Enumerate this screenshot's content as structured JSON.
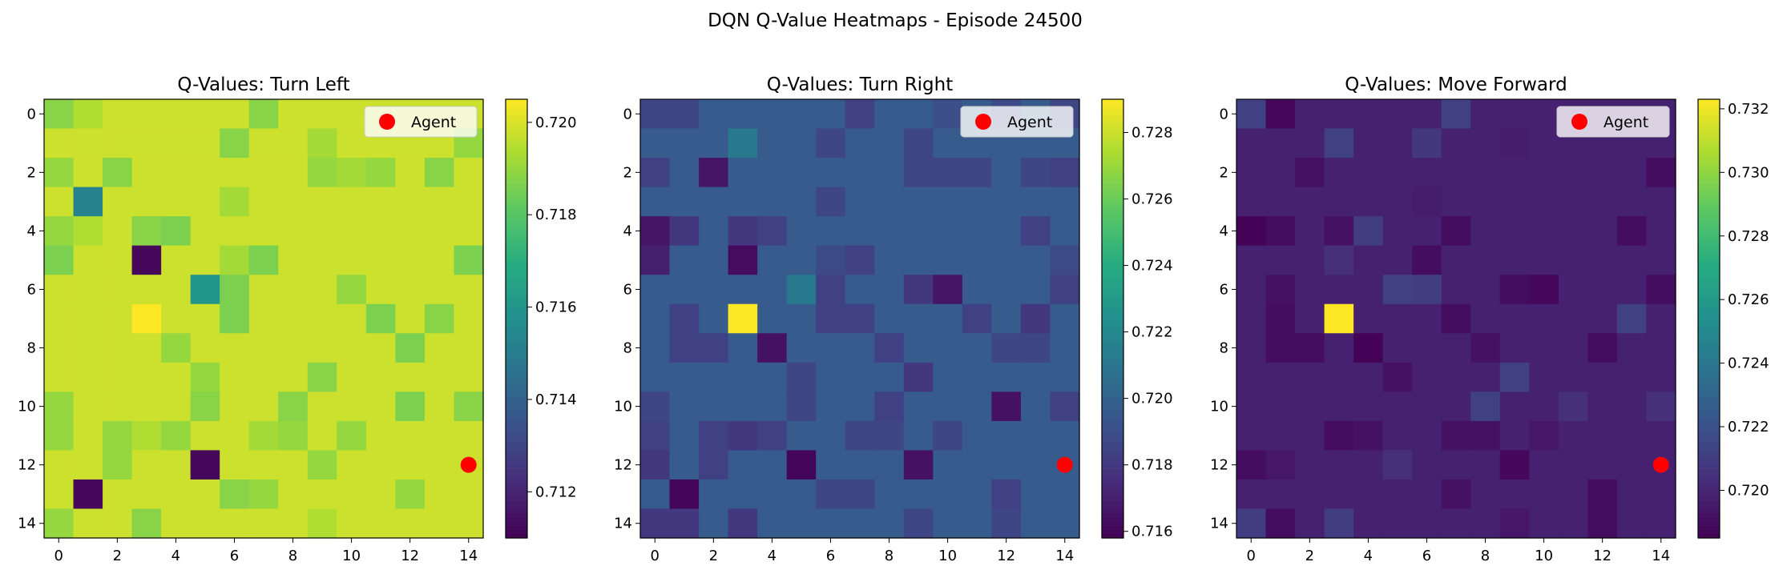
{
  "figure": {
    "title": "DQN Q-Value Heatmaps - Episode 24500"
  },
  "chart_data": [
    {
      "type": "heatmap",
      "title": "Q-Values: Turn Left",
      "vmin": 0.711,
      "vmax": 0.7205,
      "colorbar_ticks": [
        "0.712",
        "0.714",
        "0.716",
        "0.718",
        "0.720"
      ],
      "colorbar_values": [
        0.712,
        0.714,
        0.716,
        0.718,
        0.72
      ],
      "base": 0.7198,
      "cells": [
        [
          3,
          1,
          0.7152
        ],
        [
          5,
          3,
          0.7112
        ],
        [
          6,
          5,
          0.716
        ],
        [
          7,
          3,
          0.7205
        ],
        [
          12,
          5,
          0.7112
        ],
        [
          13,
          1,
          0.7112
        ],
        [
          0,
          0,
          0.7188
        ],
        [
          0,
          1,
          0.7194
        ],
        [
          0,
          7,
          0.7188
        ],
        [
          1,
          6,
          0.7188
        ],
        [
          1,
          9,
          0.7192
        ],
        [
          1,
          14,
          0.719
        ],
        [
          2,
          0,
          0.719
        ],
        [
          2,
          2,
          0.7188
        ],
        [
          2,
          9,
          0.719
        ],
        [
          2,
          10,
          0.7192
        ],
        [
          2,
          11,
          0.719
        ],
        [
          2,
          13,
          0.7188
        ],
        [
          3,
          6,
          0.7192
        ],
        [
          4,
          0,
          0.719
        ],
        [
          4,
          1,
          0.7194
        ],
        [
          4,
          3,
          0.7188
        ],
        [
          4,
          4,
          0.7186
        ],
        [
          5,
          0,
          0.7186
        ],
        [
          5,
          6,
          0.7192
        ],
        [
          5,
          7,
          0.7186
        ],
        [
          5,
          14,
          0.7186
        ],
        [
          6,
          6,
          0.7186
        ],
        [
          6,
          10,
          0.719
        ],
        [
          7,
          6,
          0.7186
        ],
        [
          7,
          11,
          0.7186
        ],
        [
          7,
          13,
          0.7188
        ],
        [
          8,
          4,
          0.719
        ],
        [
          8,
          12,
          0.7186
        ],
        [
          9,
          5,
          0.719
        ],
        [
          9,
          9,
          0.7188
        ],
        [
          10,
          0,
          0.719
        ],
        [
          10,
          5,
          0.7188
        ],
        [
          10,
          8,
          0.7188
        ],
        [
          10,
          12,
          0.7186
        ],
        [
          10,
          14,
          0.7188
        ],
        [
          11,
          0,
          0.719
        ],
        [
          11,
          2,
          0.719
        ],
        [
          11,
          3,
          0.7194
        ],
        [
          11,
          4,
          0.719
        ],
        [
          11,
          7,
          0.7192
        ],
        [
          11,
          8,
          0.719
        ],
        [
          11,
          10,
          0.719
        ],
        [
          12,
          2,
          0.719
        ],
        [
          12,
          9,
          0.719
        ],
        [
          13,
          6,
          0.7188
        ],
        [
          13,
          7,
          0.719
        ],
        [
          13,
          12,
          0.719
        ],
        [
          14,
          0,
          0.719
        ],
        [
          14,
          3,
          0.7188
        ],
        [
          14,
          9,
          0.7194
        ]
      ],
      "xticks": [
        "0",
        "2",
        "4",
        "6",
        "8",
        "10",
        "12",
        "14"
      ],
      "yticks": [
        "0",
        "2",
        "4",
        "6",
        "8",
        "10",
        "12",
        "14"
      ],
      "agent": {
        "x": 14,
        "y": 12,
        "color": "#ff0000"
      },
      "legend": {
        "label": "Agent",
        "position": "top-right"
      }
    },
    {
      "type": "heatmap",
      "title": "Q-Values: Turn Right",
      "vmin": 0.7158,
      "vmax": 0.729,
      "colorbar_ticks": [
        "0.716",
        "0.718",
        "0.720",
        "0.722",
        "0.724",
        "0.726",
        "0.728"
      ],
      "colorbar_values": [
        0.716,
        0.718,
        0.72,
        0.722,
        0.724,
        0.726,
        0.728
      ],
      "base": 0.7196,
      "cells": [
        [
          1,
          3,
          0.7212
        ],
        [
          6,
          5,
          0.7212
        ],
        [
          7,
          3,
          0.729
        ],
        [
          0,
          0,
          0.7186
        ],
        [
          0,
          1,
          0.7186
        ],
        [
          0,
          7,
          0.7184
        ],
        [
          0,
          10,
          0.719
        ],
        [
          0,
          12,
          0.7188
        ],
        [
          0,
          14,
          0.7186
        ],
        [
          1,
          6,
          0.7186
        ],
        [
          1,
          9,
          0.7186
        ],
        [
          2,
          0,
          0.7184
        ],
        [
          2,
          2,
          0.7166
        ],
        [
          2,
          9,
          0.7186
        ],
        [
          2,
          10,
          0.7186
        ],
        [
          2,
          11,
          0.7186
        ],
        [
          2,
          13,
          0.7186
        ],
        [
          2,
          14,
          0.7184
        ],
        [
          3,
          6,
          0.7186
        ],
        [
          4,
          0,
          0.7166
        ],
        [
          4,
          1,
          0.718
        ],
        [
          4,
          3,
          0.718
        ],
        [
          4,
          4,
          0.7184
        ],
        [
          4,
          13,
          0.7184
        ],
        [
          5,
          0,
          0.717
        ],
        [
          5,
          3,
          0.7162
        ],
        [
          5,
          6,
          0.7188
        ],
        [
          5,
          7,
          0.7184
        ],
        [
          5,
          14,
          0.7188
        ],
        [
          6,
          6,
          0.7184
        ],
        [
          6,
          9,
          0.718
        ],
        [
          6,
          10,
          0.7166
        ],
        [
          6,
          14,
          0.7184
        ],
        [
          7,
          1,
          0.7184
        ],
        [
          7,
          6,
          0.7184
        ],
        [
          7,
          7,
          0.7184
        ],
        [
          7,
          11,
          0.7184
        ],
        [
          7,
          13,
          0.718
        ],
        [
          8,
          1,
          0.7184
        ],
        [
          8,
          2,
          0.7184
        ],
        [
          8,
          4,
          0.7164
        ],
        [
          8,
          8,
          0.7184
        ],
        [
          8,
          12,
          0.7186
        ],
        [
          8,
          13,
          0.7186
        ],
        [
          9,
          5,
          0.7186
        ],
        [
          9,
          9,
          0.718
        ],
        [
          10,
          0,
          0.7186
        ],
        [
          10,
          5,
          0.7186
        ],
        [
          10,
          8,
          0.7184
        ],
        [
          10,
          12,
          0.7164
        ],
        [
          10,
          14,
          0.7184
        ],
        [
          11,
          0,
          0.7184
        ],
        [
          11,
          2,
          0.7184
        ],
        [
          11,
          3,
          0.718
        ],
        [
          11,
          4,
          0.7184
        ],
        [
          11,
          7,
          0.7186
        ],
        [
          11,
          8,
          0.7186
        ],
        [
          11,
          10,
          0.7186
        ],
        [
          12,
          0,
          0.718
        ],
        [
          12,
          2,
          0.7184
        ],
        [
          12,
          5,
          0.716
        ],
        [
          12,
          9,
          0.7164
        ],
        [
          13,
          1,
          0.716
        ],
        [
          13,
          6,
          0.7186
        ],
        [
          13,
          7,
          0.7186
        ],
        [
          13,
          12,
          0.7184
        ],
        [
          14,
          0,
          0.718
        ],
        [
          14,
          1,
          0.718
        ],
        [
          14,
          3,
          0.718
        ],
        [
          14,
          9,
          0.7186
        ],
        [
          14,
          12,
          0.7186
        ]
      ],
      "xticks": [
        "0",
        "2",
        "4",
        "6",
        "8",
        "10",
        "12",
        "14"
      ],
      "yticks": [
        "0",
        "2",
        "4",
        "6",
        "8",
        "10",
        "12",
        "14"
      ],
      "agent": {
        "x": 14,
        "y": 12,
        "color": "#ff0000"
      },
      "legend": {
        "label": "Agent",
        "position": "top-right"
      }
    },
    {
      "type": "heatmap",
      "title": "Q-Values: Move Forward",
      "vmin": 0.7185,
      "vmax": 0.7323,
      "colorbar_ticks": [
        "0.720",
        "0.722",
        "0.724",
        "0.726",
        "0.728",
        "0.730",
        "0.732"
      ],
      "colorbar_values": [
        0.72,
        0.722,
        0.724,
        0.726,
        0.728,
        0.73,
        0.732
      ],
      "base": 0.7198,
      "cells": [
        [
          7,
          3,
          0.7323
        ],
        [
          0,
          0,
          0.7212
        ],
        [
          0,
          1,
          0.7188
        ],
        [
          0,
          7,
          0.7212
        ],
        [
          1,
          3,
          0.7212
        ],
        [
          1,
          6,
          0.7208
        ],
        [
          1,
          9,
          0.7196
        ],
        [
          2,
          2,
          0.7192
        ],
        [
          2,
          14,
          0.719
        ],
        [
          3,
          6,
          0.7196
        ],
        [
          4,
          0,
          0.7186
        ],
        [
          4,
          1,
          0.719
        ],
        [
          4,
          3,
          0.7192
        ],
        [
          4,
          4,
          0.721
        ],
        [
          4,
          7,
          0.719
        ],
        [
          4,
          13,
          0.719
        ],
        [
          5,
          3,
          0.7204
        ],
        [
          5,
          6,
          0.719
        ],
        [
          6,
          1,
          0.7192
        ],
        [
          6,
          5,
          0.7212
        ],
        [
          6,
          6,
          0.721
        ],
        [
          6,
          9,
          0.719
        ],
        [
          6,
          10,
          0.7188
        ],
        [
          6,
          14,
          0.719
        ],
        [
          7,
          1,
          0.719
        ],
        [
          7,
          7,
          0.719
        ],
        [
          7,
          13,
          0.7212
        ],
        [
          8,
          1,
          0.719
        ],
        [
          8,
          2,
          0.719
        ],
        [
          8,
          4,
          0.7186
        ],
        [
          8,
          8,
          0.7192
        ],
        [
          8,
          12,
          0.719
        ],
        [
          9,
          5,
          0.7192
        ],
        [
          9,
          9,
          0.7212
        ],
        [
          10,
          8,
          0.7212
        ],
        [
          10,
          11,
          0.7204
        ],
        [
          10,
          14,
          0.7204
        ],
        [
          11,
          3,
          0.719
        ],
        [
          11,
          4,
          0.7192
        ],
        [
          11,
          7,
          0.7192
        ],
        [
          11,
          8,
          0.7192
        ],
        [
          11,
          10,
          0.7194
        ],
        [
          12,
          0,
          0.719
        ],
        [
          12,
          1,
          0.7194
        ],
        [
          12,
          5,
          0.7204
        ],
        [
          12,
          9,
          0.7188
        ],
        [
          13,
          7,
          0.7192
        ],
        [
          13,
          12,
          0.719
        ],
        [
          14,
          0,
          0.721
        ],
        [
          14,
          1,
          0.719
        ],
        [
          14,
          3,
          0.721
        ],
        [
          14,
          9,
          0.7194
        ],
        [
          14,
          12,
          0.719
        ]
      ],
      "xticks": [
        "0",
        "2",
        "4",
        "6",
        "8",
        "10",
        "12",
        "14"
      ],
      "yticks": [
        "0",
        "2",
        "4",
        "6",
        "8",
        "10",
        "12",
        "14"
      ],
      "agent": {
        "x": 14,
        "y": 12,
        "color": "#ff0000"
      },
      "legend": {
        "label": "Agent",
        "position": "top-right"
      }
    }
  ]
}
